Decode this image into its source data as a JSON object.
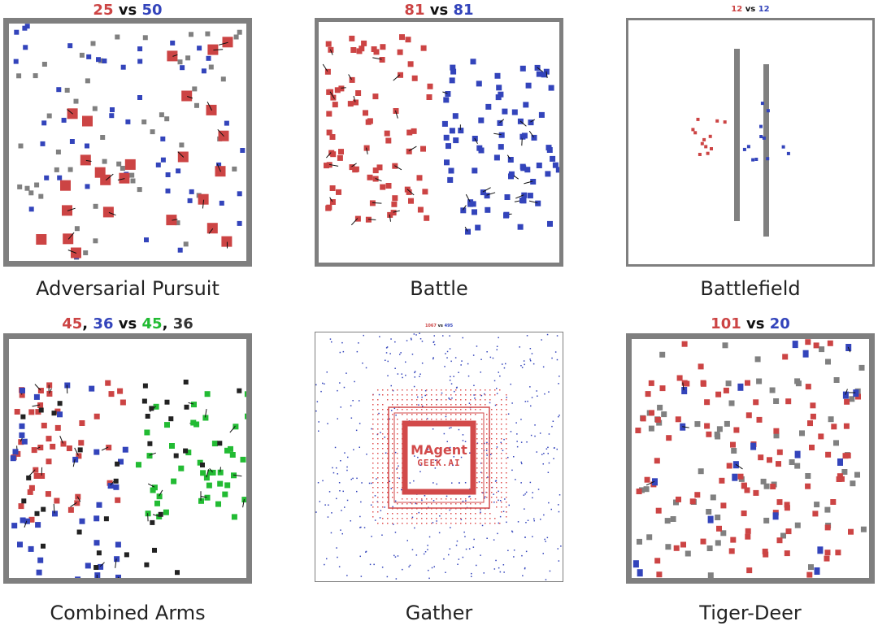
{
  "colors": {
    "red": "#cc4444",
    "blue": "#3344bb",
    "green": "#22bb33",
    "gray": "#808080",
    "black": "#222222",
    "border": "#7f7f7f"
  },
  "panels": [
    {
      "name": "adversarial-pursuit",
      "caption": "Adversarial Pursuit",
      "score": {
        "left": "25",
        "vs": "vs",
        "right": "50"
      }
    },
    {
      "name": "battle",
      "caption": "Battle",
      "score": {
        "left": "81",
        "vs": "vs",
        "right": "81"
      }
    },
    {
      "name": "battlefield",
      "caption": "Battlefield",
      "score": {
        "left": "12",
        "vs": "vs",
        "right": "12"
      }
    },
    {
      "name": "combined-arms",
      "caption": "Combined Arms",
      "score": {
        "a": "45",
        "sep1": ",",
        "b": "36",
        "vs": "vs",
        "c": "45",
        "sep2": ",",
        "d": "36"
      }
    },
    {
      "name": "gather",
      "caption": "Gather",
      "score": {
        "left": "1067",
        "vs": "vs",
        "right": "495"
      },
      "logo": {
        "line1": "MAgent",
        "line2": "GEEK.AI"
      }
    },
    {
      "name": "tiger-deer",
      "caption": "Tiger-Deer",
      "score": {
        "left": "101",
        "vs": "vs",
        "right": "20"
      }
    }
  ]
}
